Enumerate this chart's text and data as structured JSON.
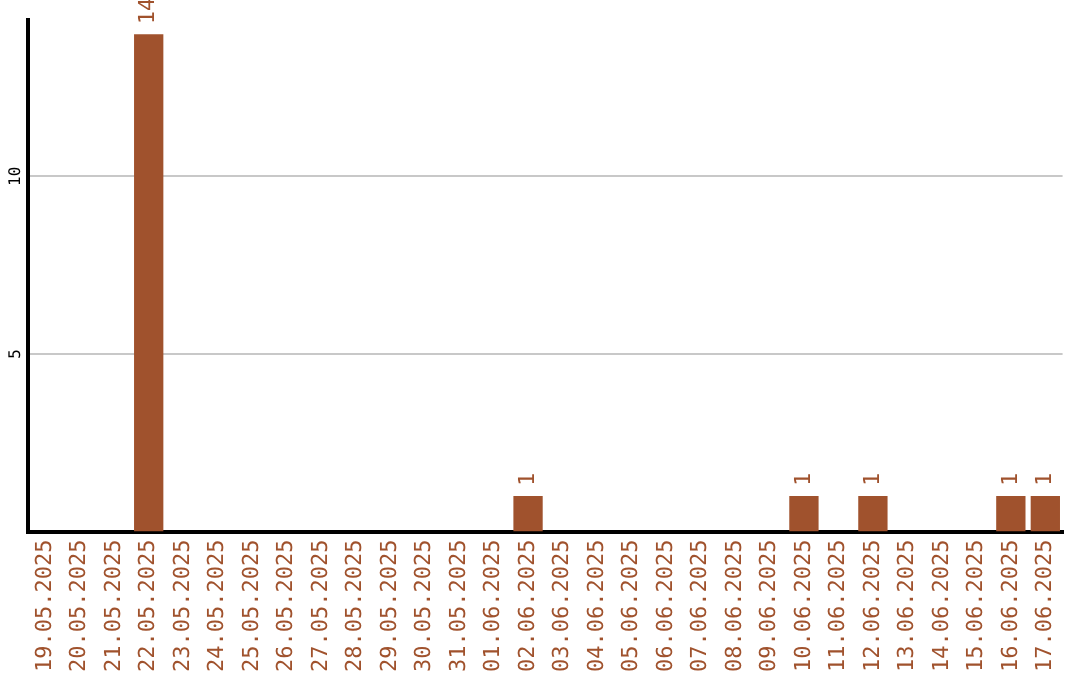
{
  "chart_data": {
    "type": "bar",
    "categories": [
      "19.05.2025",
      "20.05.2025",
      "21.05.2025",
      "22.05.2025",
      "23.05.2025",
      "24.05.2025",
      "25.05.2025",
      "26.05.2025",
      "27.05.2025",
      "28.05.2025",
      "29.05.2025",
      "30.05.2025",
      "31.05.2025",
      "01.06.2025",
      "02.06.2025",
      "03.06.2025",
      "04.06.2025",
      "05.06.2025",
      "06.06.2025",
      "07.06.2025",
      "08.06.2025",
      "09.06.2025",
      "10.06.2025",
      "11.06.2025",
      "12.06.2025",
      "13.06.2025",
      "14.06.2025",
      "15.06.2025",
      "16.06.2025",
      "17.06.2025"
    ],
    "values": [
      0,
      0,
      0,
      14,
      0,
      0,
      0,
      0,
      0,
      0,
      0,
      0,
      0,
      0,
      1,
      0,
      0,
      0,
      0,
      0,
      0,
      0,
      1,
      0,
      1,
      0,
      0,
      0,
      1,
      1
    ],
    "color": "#a0522d",
    "value_labels": [
      null,
      null,
      null,
      "14",
      null,
      null,
      null,
      null,
      null,
      null,
      null,
      null,
      null,
      null,
      "1",
      null,
      null,
      null,
      null,
      null,
      null,
      null,
      "1",
      null,
      "1",
      null,
      null,
      null,
      "1",
      "1"
    ],
    "ylim": [
      0,
      14.4
    ],
    "yticks": [
      5,
      10
    ],
    "grid": "y"
  }
}
